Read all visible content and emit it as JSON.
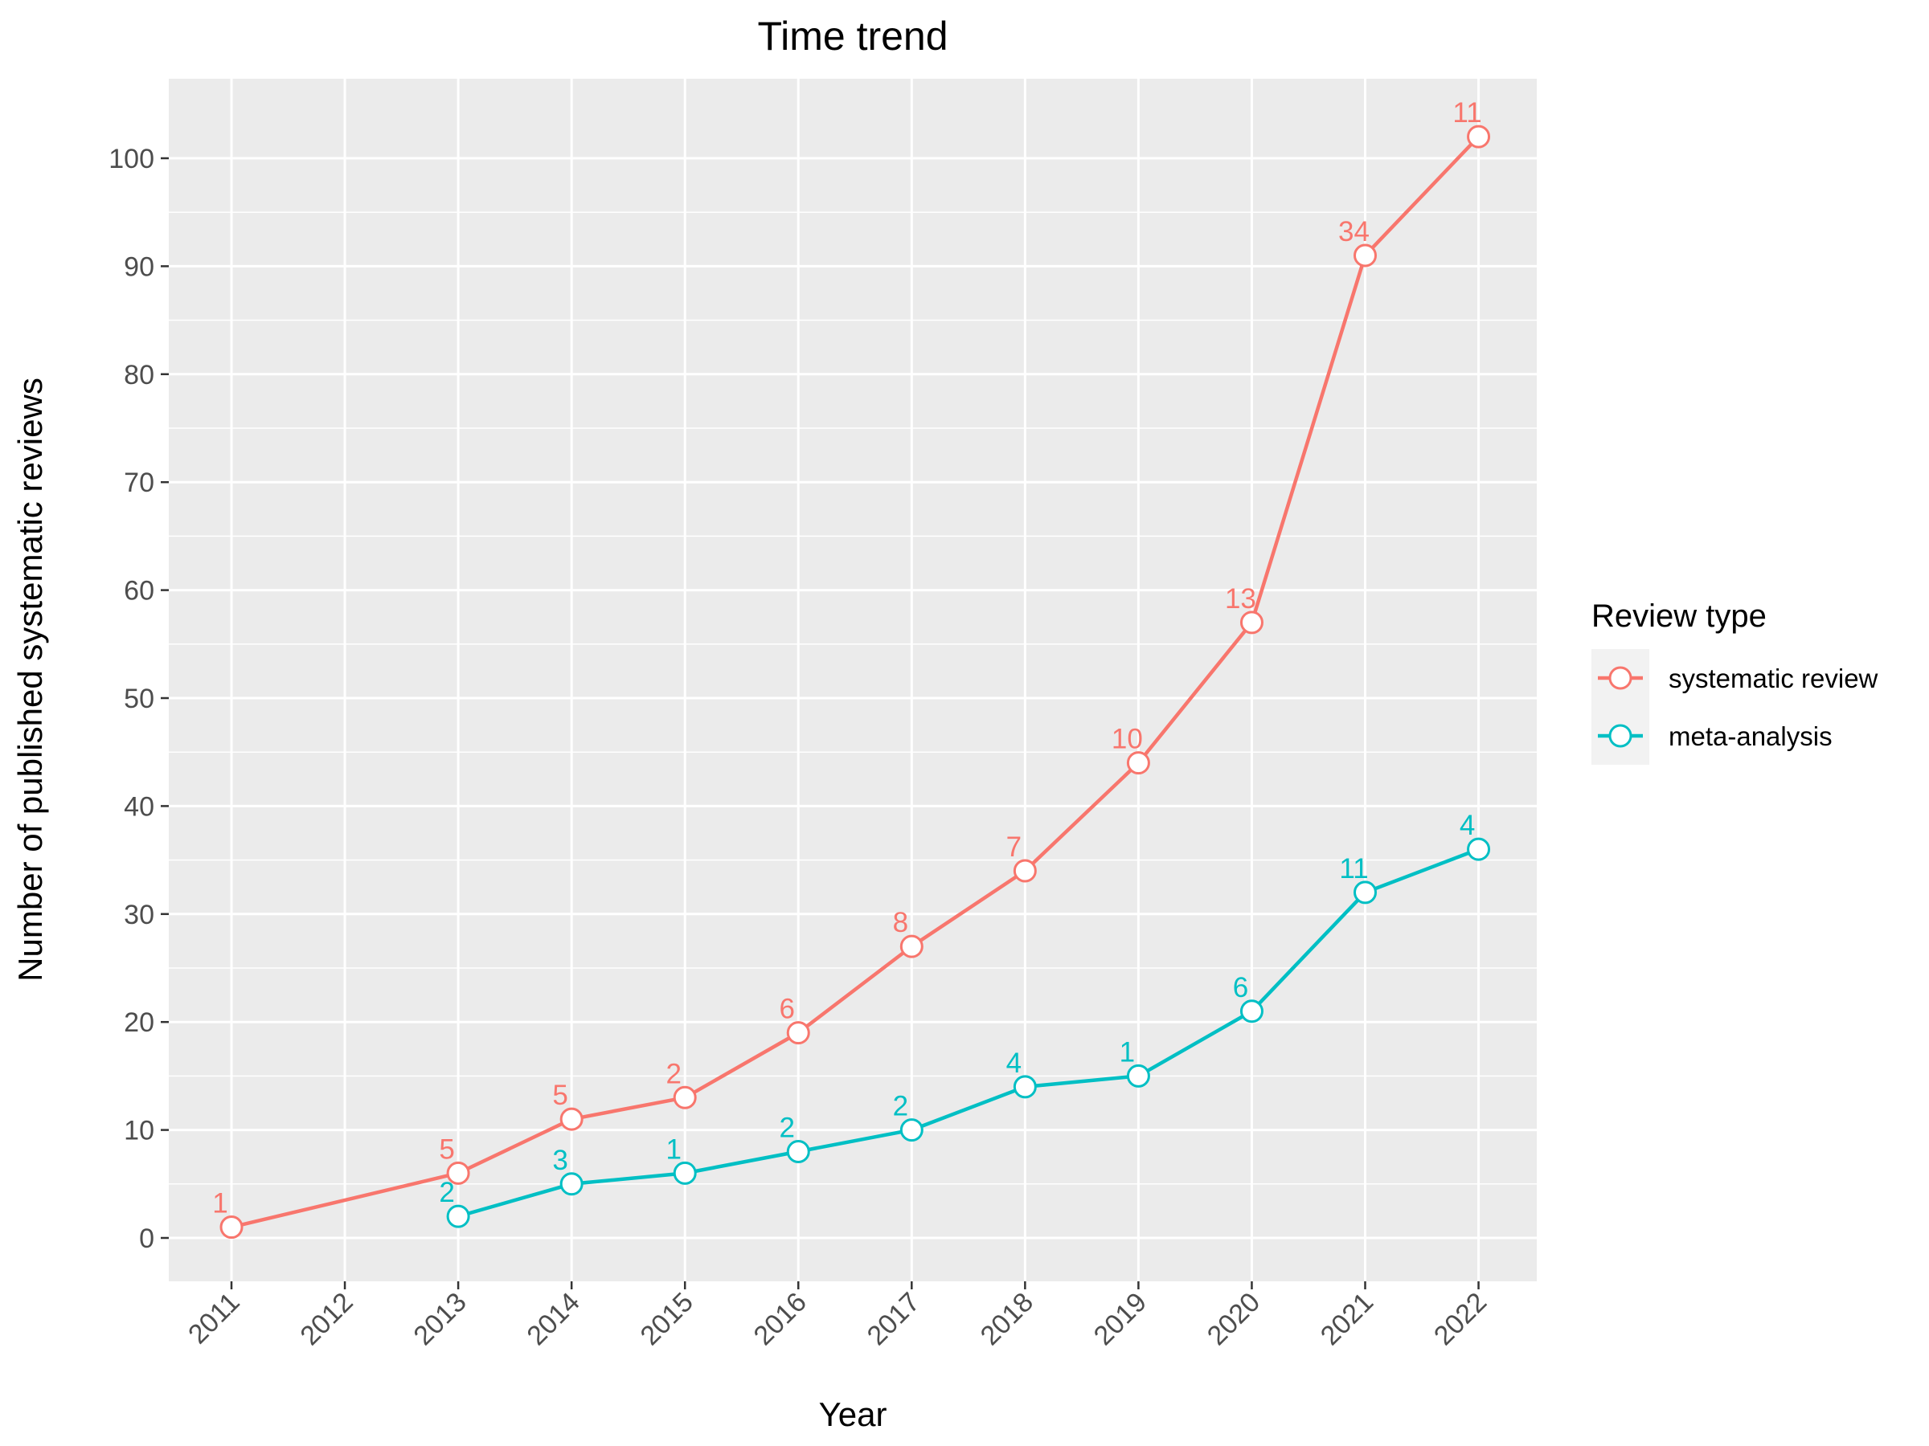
{
  "chart_data": {
    "type": "line",
    "title": "Time trend",
    "xlabel": "Year",
    "ylabel": "Number of published systematic reviews",
    "categories": [
      "2011",
      "2012",
      "2013",
      "2014",
      "2015",
      "2016",
      "2017",
      "2018",
      "2019",
      "2020",
      "2021",
      "2022"
    ],
    "ylim": [
      -4,
      107
    ],
    "yticks": [
      0,
      10,
      20,
      30,
      40,
      50,
      60,
      70,
      80,
      90,
      100
    ],
    "grid": true,
    "legend": {
      "title": "Review type",
      "position": "right"
    },
    "series": [
      {
        "name": "systematic review",
        "color": "#F8766D",
        "x": [
          "2011",
          "2013",
          "2014",
          "2015",
          "2016",
          "2017",
          "2018",
          "2019",
          "2020",
          "2021",
          "2022"
        ],
        "values": [
          1,
          6,
          11,
          13,
          19,
          27,
          34,
          44,
          57,
          91,
          102
        ],
        "labels": [
          "1",
          "5",
          "5",
          "2",
          "6",
          "8",
          "7",
          "10",
          "13",
          "34",
          "11"
        ]
      },
      {
        "name": "meta-analysis",
        "color": "#00BFC4",
        "x": [
          "2013",
          "2014",
          "2015",
          "2016",
          "2017",
          "2018",
          "2019",
          "2020",
          "2021",
          "2022"
        ],
        "values": [
          2,
          5,
          6,
          8,
          10,
          14,
          15,
          21,
          32,
          36
        ],
        "labels": [
          "2",
          "3",
          "1",
          "2",
          "2",
          "4",
          "1",
          "6",
          "11",
          "4"
        ]
      }
    ]
  }
}
